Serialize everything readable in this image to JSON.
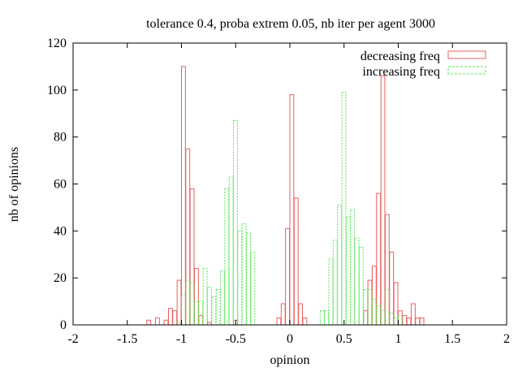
{
  "chart_data": {
    "type": "bar",
    "title": "tolerance 0.4, proba extrem 0.05, nb iter per agent 3000",
    "xlabel": "opinion",
    "ylabel": "nb of opinions",
    "xlim": [
      -2,
      2
    ],
    "ylim": [
      0,
      120
    ],
    "xticks": [
      "-2",
      "-1.5",
      "-1",
      "-0.5",
      "0",
      "0.5",
      "1",
      "1.5",
      "2"
    ],
    "yticks": [
      "0",
      "20",
      "40",
      "60",
      "80",
      "100",
      "120"
    ],
    "bin_width": 0.04,
    "grid": false,
    "legend_position": "top-right",
    "series": [
      {
        "name": "decreasing freq",
        "color": "#e8605e",
        "style": "solid",
        "bins": [
          [
            -1.32,
            2
          ],
          [
            -1.24,
            3
          ],
          [
            -1.16,
            2
          ],
          [
            -1.12,
            7
          ],
          [
            -1.08,
            6
          ],
          [
            -1.04,
            19
          ],
          [
            -1.0,
            110
          ],
          [
            -0.96,
            75
          ],
          [
            -0.92,
            58
          ],
          [
            -0.88,
            24
          ],
          [
            -0.84,
            4
          ],
          [
            -0.76,
            1
          ],
          [
            -0.52,
            2
          ],
          [
            -0.12,
            3
          ],
          [
            -0.08,
            9
          ],
          [
            -0.04,
            41
          ],
          [
            0.0,
            98
          ],
          [
            0.04,
            54
          ],
          [
            0.08,
            9
          ],
          [
            0.12,
            3
          ],
          [
            0.68,
            6
          ],
          [
            0.72,
            19
          ],
          [
            0.76,
            25
          ],
          [
            0.8,
            56
          ],
          [
            0.84,
            106
          ],
          [
            0.88,
            47
          ],
          [
            0.92,
            31
          ],
          [
            0.96,
            18
          ],
          [
            1.0,
            6
          ],
          [
            1.04,
            4
          ],
          [
            1.08,
            3
          ],
          [
            1.12,
            9
          ],
          [
            1.16,
            3
          ],
          [
            1.2,
            3
          ]
        ]
      },
      {
        "name": "increasing freq",
        "color": "#56e656",
        "style": "dashed",
        "bins": [
          [
            -1.04,
            1
          ],
          [
            -1.0,
            13
          ],
          [
            -0.96,
            19
          ],
          [
            -0.92,
            18
          ],
          [
            -0.88,
            10
          ],
          [
            -0.84,
            10
          ],
          [
            -0.8,
            24
          ],
          [
            -0.76,
            16
          ],
          [
            -0.72,
            12
          ],
          [
            -0.68,
            15
          ],
          [
            -0.64,
            23
          ],
          [
            -0.6,
            58
          ],
          [
            -0.56,
            63
          ],
          [
            -0.52,
            87
          ],
          [
            -0.48,
            40
          ],
          [
            -0.44,
            43
          ],
          [
            -0.4,
            39
          ],
          [
            -0.36,
            31
          ],
          [
            0.28,
            6
          ],
          [
            0.32,
            6
          ],
          [
            0.36,
            28
          ],
          [
            0.4,
            36
          ],
          [
            0.44,
            51
          ],
          [
            0.48,
            99
          ],
          [
            0.52,
            46
          ],
          [
            0.56,
            49
          ],
          [
            0.6,
            37
          ],
          [
            0.64,
            33
          ],
          [
            0.68,
            15
          ],
          [
            0.72,
            15
          ],
          [
            0.76,
            11
          ],
          [
            0.8,
            8
          ],
          [
            0.84,
            6
          ],
          [
            0.88,
            15
          ],
          [
            0.92,
            5
          ],
          [
            0.96,
            3
          ],
          [
            1.0,
            4
          ]
        ]
      }
    ]
  }
}
